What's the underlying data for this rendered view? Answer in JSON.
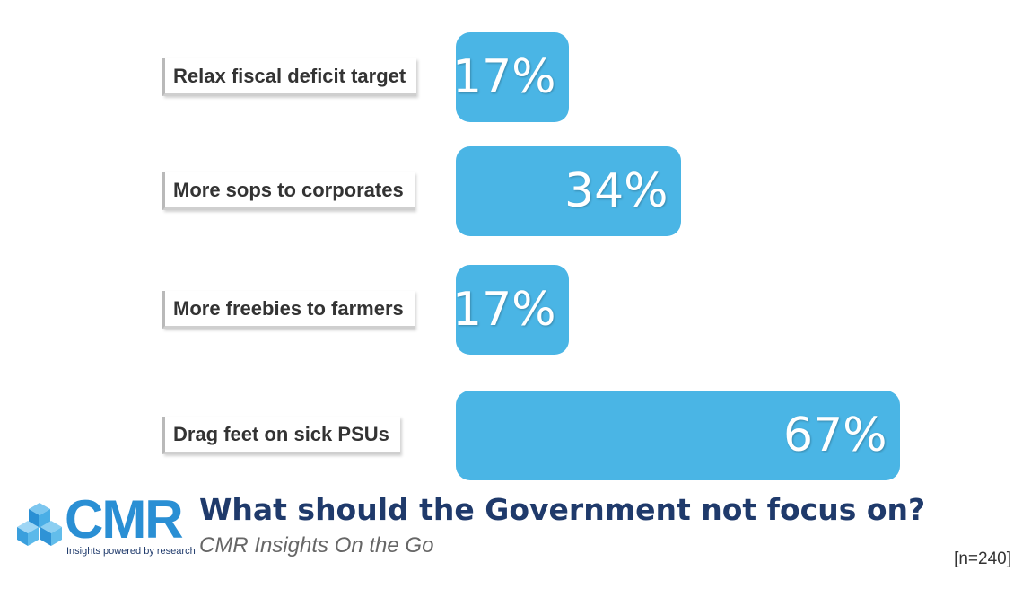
{
  "chart_data": {
    "type": "bar",
    "orientation": "horizontal",
    "title": "What should the Government not focus on?",
    "categories": [
      "Relax fiscal deficit target",
      "More sops to corporates",
      "More freebies to farmers",
      "Drag feet on sick PSUs"
    ],
    "values": [
      17,
      34,
      17,
      67
    ],
    "value_labels": [
      "17%",
      "34%",
      "17%",
      "67%"
    ],
    "unit": "%",
    "bar_color": "#4ab5e5",
    "xlim": [
      0,
      67
    ],
    "grid": false,
    "legend": "none"
  },
  "footer": {
    "logo_text": "CMR",
    "logo_tagline": "Insights powered by research",
    "title": "What should the Government not focus on?",
    "subtitle": "CMR Insights On the Go",
    "sample_size": "[n=240]"
  },
  "colors": {
    "bar": "#4ab5e5",
    "title": "#1f3a6b",
    "logo": "#2a8fd4",
    "subtitle": "#666666"
  },
  "icons": {
    "logo_mark": "cube-cluster-icon"
  }
}
